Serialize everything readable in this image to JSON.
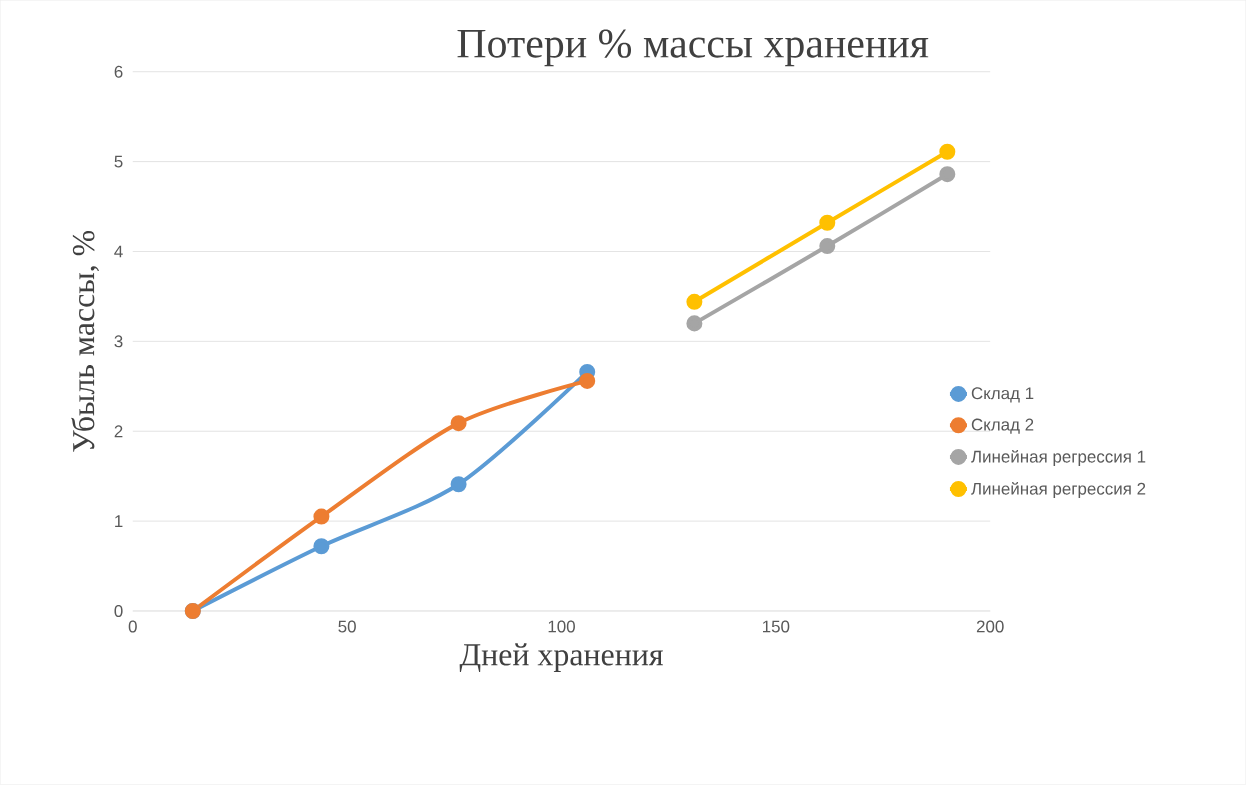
{
  "chart_data": {
    "type": "line",
    "title": "Потери % массы хранения",
    "xlabel": "Дней хранения",
    "ylabel": "Убыль массы, %",
    "series": [
      {
        "name": "Склад 1",
        "color": "#5b9bd5",
        "x": [
          14,
          44,
          76,
          106
        ],
        "values": [
          0,
          0.72,
          1.41,
          2.66
        ]
      },
      {
        "name": "Склад 2",
        "color": "#ed7d31",
        "x": [
          14,
          44,
          76,
          106
        ],
        "values": [
          0,
          1.05,
          2.09,
          2.56
        ]
      },
      {
        "name": "Линейная регрессия 1",
        "color": "#a5a5a5",
        "x": [
          131,
          162,
          190
        ],
        "values": [
          3.2,
          4.06,
          4.86
        ]
      },
      {
        "name": "Линейная регрессия 2",
        "color": "#ffc000",
        "x": [
          131,
          162,
          190
        ],
        "values": [
          3.44,
          4.32,
          5.11
        ]
      }
    ],
    "xlim": [
      0,
      200
    ],
    "ylim": [
      0,
      6
    ],
    "xticks": [
      0,
      50,
      100,
      150,
      200
    ],
    "yticks": [
      0,
      1,
      2,
      3,
      4,
      5,
      6
    ],
    "grid": "y",
    "legend": "right",
    "marker": "circle",
    "line_style": "solid"
  }
}
